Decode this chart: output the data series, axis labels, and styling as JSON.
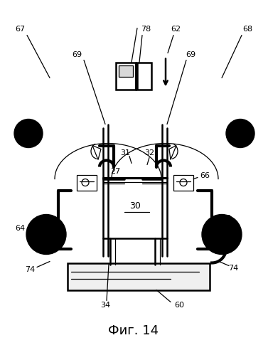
{
  "title": "Фиг. 14",
  "title_fontsize": 13,
  "bg_color": "#ffffff",
  "lw_main": 1.8,
  "lw_thin": 0.9,
  "lw_thick": 3.0
}
